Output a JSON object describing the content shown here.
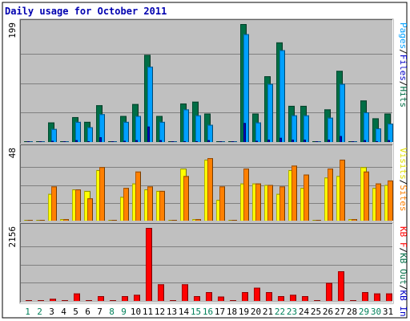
{
  "chart_data": {
    "type": "bar",
    "title": "Daily usage for October 2011",
    "days": [
      "1",
      "2",
      "3",
      "4",
      "5",
      "6",
      "7",
      "8",
      "9",
      "10",
      "11",
      "12",
      "13",
      "14",
      "15",
      "16",
      "17",
      "18",
      "19",
      "20",
      "21",
      "22",
      "23",
      "24",
      "25",
      "26",
      "27",
      "28",
      "29",
      "30",
      "31"
    ],
    "weekend_days": [
      1,
      2,
      8,
      9,
      15,
      16,
      22,
      23,
      29,
      30
    ],
    "colors": {
      "hits": "#006e46",
      "files": "#00a0ff",
      "pages": "#0000c8",
      "visits": "#ffff00",
      "sites": "#ff8000",
      "kb": "#ff0000",
      "weekday_label": "#000000",
      "weekend_label": "#00805a"
    },
    "panels": [
      {
        "max_label": "199",
        "ylim": [
          0,
          199
        ],
        "labels": [
          {
            "text": "Pages",
            "color": "#00a0ff"
          },
          {
            "text": "/",
            "color": "#000000"
          },
          {
            "text": "Files",
            "color": "#0000c8"
          },
          {
            "text": "/",
            "color": "#000000"
          },
          {
            "text": "Hits",
            "color": "#006e46"
          }
        ],
        "series": [
          {
            "key": "hits",
            "values": [
              0,
              0,
              33,
              1,
              42,
              34,
              62,
              0,
              44,
              64,
              147,
              44,
              0,
              65,
              68,
              48,
              0,
              0,
              199,
              48,
              111,
              168,
              61,
              61,
              0,
              55,
              120,
              0,
              70,
              40,
              48
            ]
          },
          {
            "key": "files",
            "values": [
              0,
              0,
              22,
              1,
              34,
              25,
              47,
              0,
              34,
              44,
              127,
              34,
              0,
              55,
              45,
              29,
              0,
              0,
              182,
              33,
              98,
              155,
              45,
              45,
              0,
              41,
              98,
              0,
              50,
              23,
              31
            ]
          },
          {
            "key": "pages",
            "values": [
              0,
              0,
              2,
              0,
              3,
              1,
              8,
              0,
              2,
              3,
              26,
              3,
              0,
              0,
              1,
              3,
              0,
              0,
              32,
              2,
              4,
              7,
              4,
              4,
              0,
              4,
              10,
              0,
              3,
              1,
              3
            ]
          }
        ]
      },
      {
        "max_label": "48",
        "ylim": [
          0,
          48
        ],
        "labels": [
          {
            "text": "Visits",
            "color": "#e0e000"
          },
          {
            "text": "/",
            "color": "#000000"
          },
          {
            "text": "Sites",
            "color": "#ff8000"
          }
        ],
        "series": [
          {
            "key": "visits",
            "values": [
              0,
              0,
              18,
              1,
              21,
              20,
              34,
              0,
              16,
              25,
              21,
              20,
              0,
              35,
              1,
              41,
              14,
              0,
              25,
              25,
              24,
              18,
              34,
              22,
              0,
              29,
              30,
              1,
              36,
              22,
              24
            ]
          },
          {
            "key": "sites",
            "values": [
              0,
              0,
              23,
              1,
              21,
              15,
              36,
              0,
              22,
              33,
              23,
              20,
              0,
              30,
              1,
              42,
              23,
              0,
              35,
              25,
              24,
              23,
              37,
              31,
              0,
              35,
              41,
              1,
              33,
              25,
              27
            ]
          }
        ]
      },
      {
        "max_label": "2156",
        "ylim": [
          0,
          2156
        ],
        "labels": [
          {
            "text": "KB F",
            "color": "#ff0000"
          },
          {
            "text": "/",
            "color": "#000000"
          },
          {
            "text": "KB Out",
            "color": "#006e46"
          },
          {
            "text": "/",
            "color": "#000000"
          },
          {
            "text": "KB In",
            "color": "#0000c8"
          }
        ],
        "series": [
          {
            "key": "kb",
            "values": [
              0,
              0,
              62,
              8,
              220,
              8,
              142,
              0,
              142,
              180,
              2156,
              490,
              0,
              490,
              142,
              260,
              130,
              0,
              260,
              390,
              260,
              142,
              180,
              142,
              0,
              530,
              875,
              8,
              260,
              220,
              220
            ]
          }
        ]
      }
    ]
  }
}
